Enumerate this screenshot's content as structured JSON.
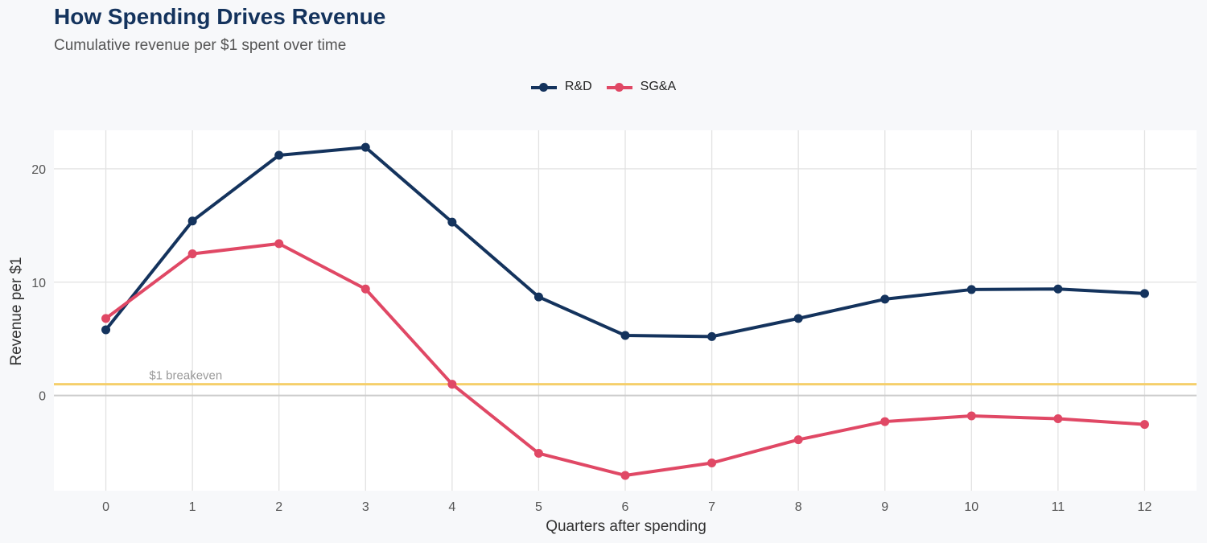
{
  "title": "How Spending Drives Revenue",
  "subtitle": "Cumulative revenue per $1 spent over time",
  "chart_data": {
    "type": "line",
    "title": "How Spending Drives Revenue",
    "subtitle": "Cumulative revenue per $1 spent over time",
    "xlabel": "Quarters after spending",
    "ylabel": "Revenue per $1",
    "x": [
      0,
      1,
      2,
      3,
      4,
      5,
      6,
      7,
      8,
      9,
      10,
      11,
      12
    ],
    "x_ticks": [
      "0",
      "1",
      "2",
      "3",
      "4",
      "5",
      "6",
      "7",
      "8",
      "9",
      "10",
      "11",
      "12"
    ],
    "y_ticks": [
      "0",
      "10",
      "20"
    ],
    "xlim": [
      -0.6,
      12.6
    ],
    "ylim": [
      -8.4,
      23.4
    ],
    "grid": true,
    "legend_position": "top-center",
    "series": [
      {
        "name": "R&D",
        "color": "#14335d",
        "values": [
          5.8,
          15.4,
          21.2,
          21.9,
          15.3,
          8.7,
          5.3,
          5.2,
          6.8,
          8.5,
          9.35,
          9.4,
          9.0
        ]
      },
      {
        "name": "SG&A",
        "color": "#e04865",
        "values": [
          6.8,
          12.5,
          13.4,
          9.4,
          1.0,
          -5.1,
          -7.05,
          -5.95,
          -3.9,
          -2.3,
          -1.8,
          -2.05,
          -2.55
        ]
      }
    ],
    "reference_lines": [
      {
        "label": "$1 breakeven",
        "y": 1,
        "color": "#f5cf6b"
      },
      {
        "label": "",
        "y": 0,
        "color": "#cccccc"
      }
    ]
  }
}
